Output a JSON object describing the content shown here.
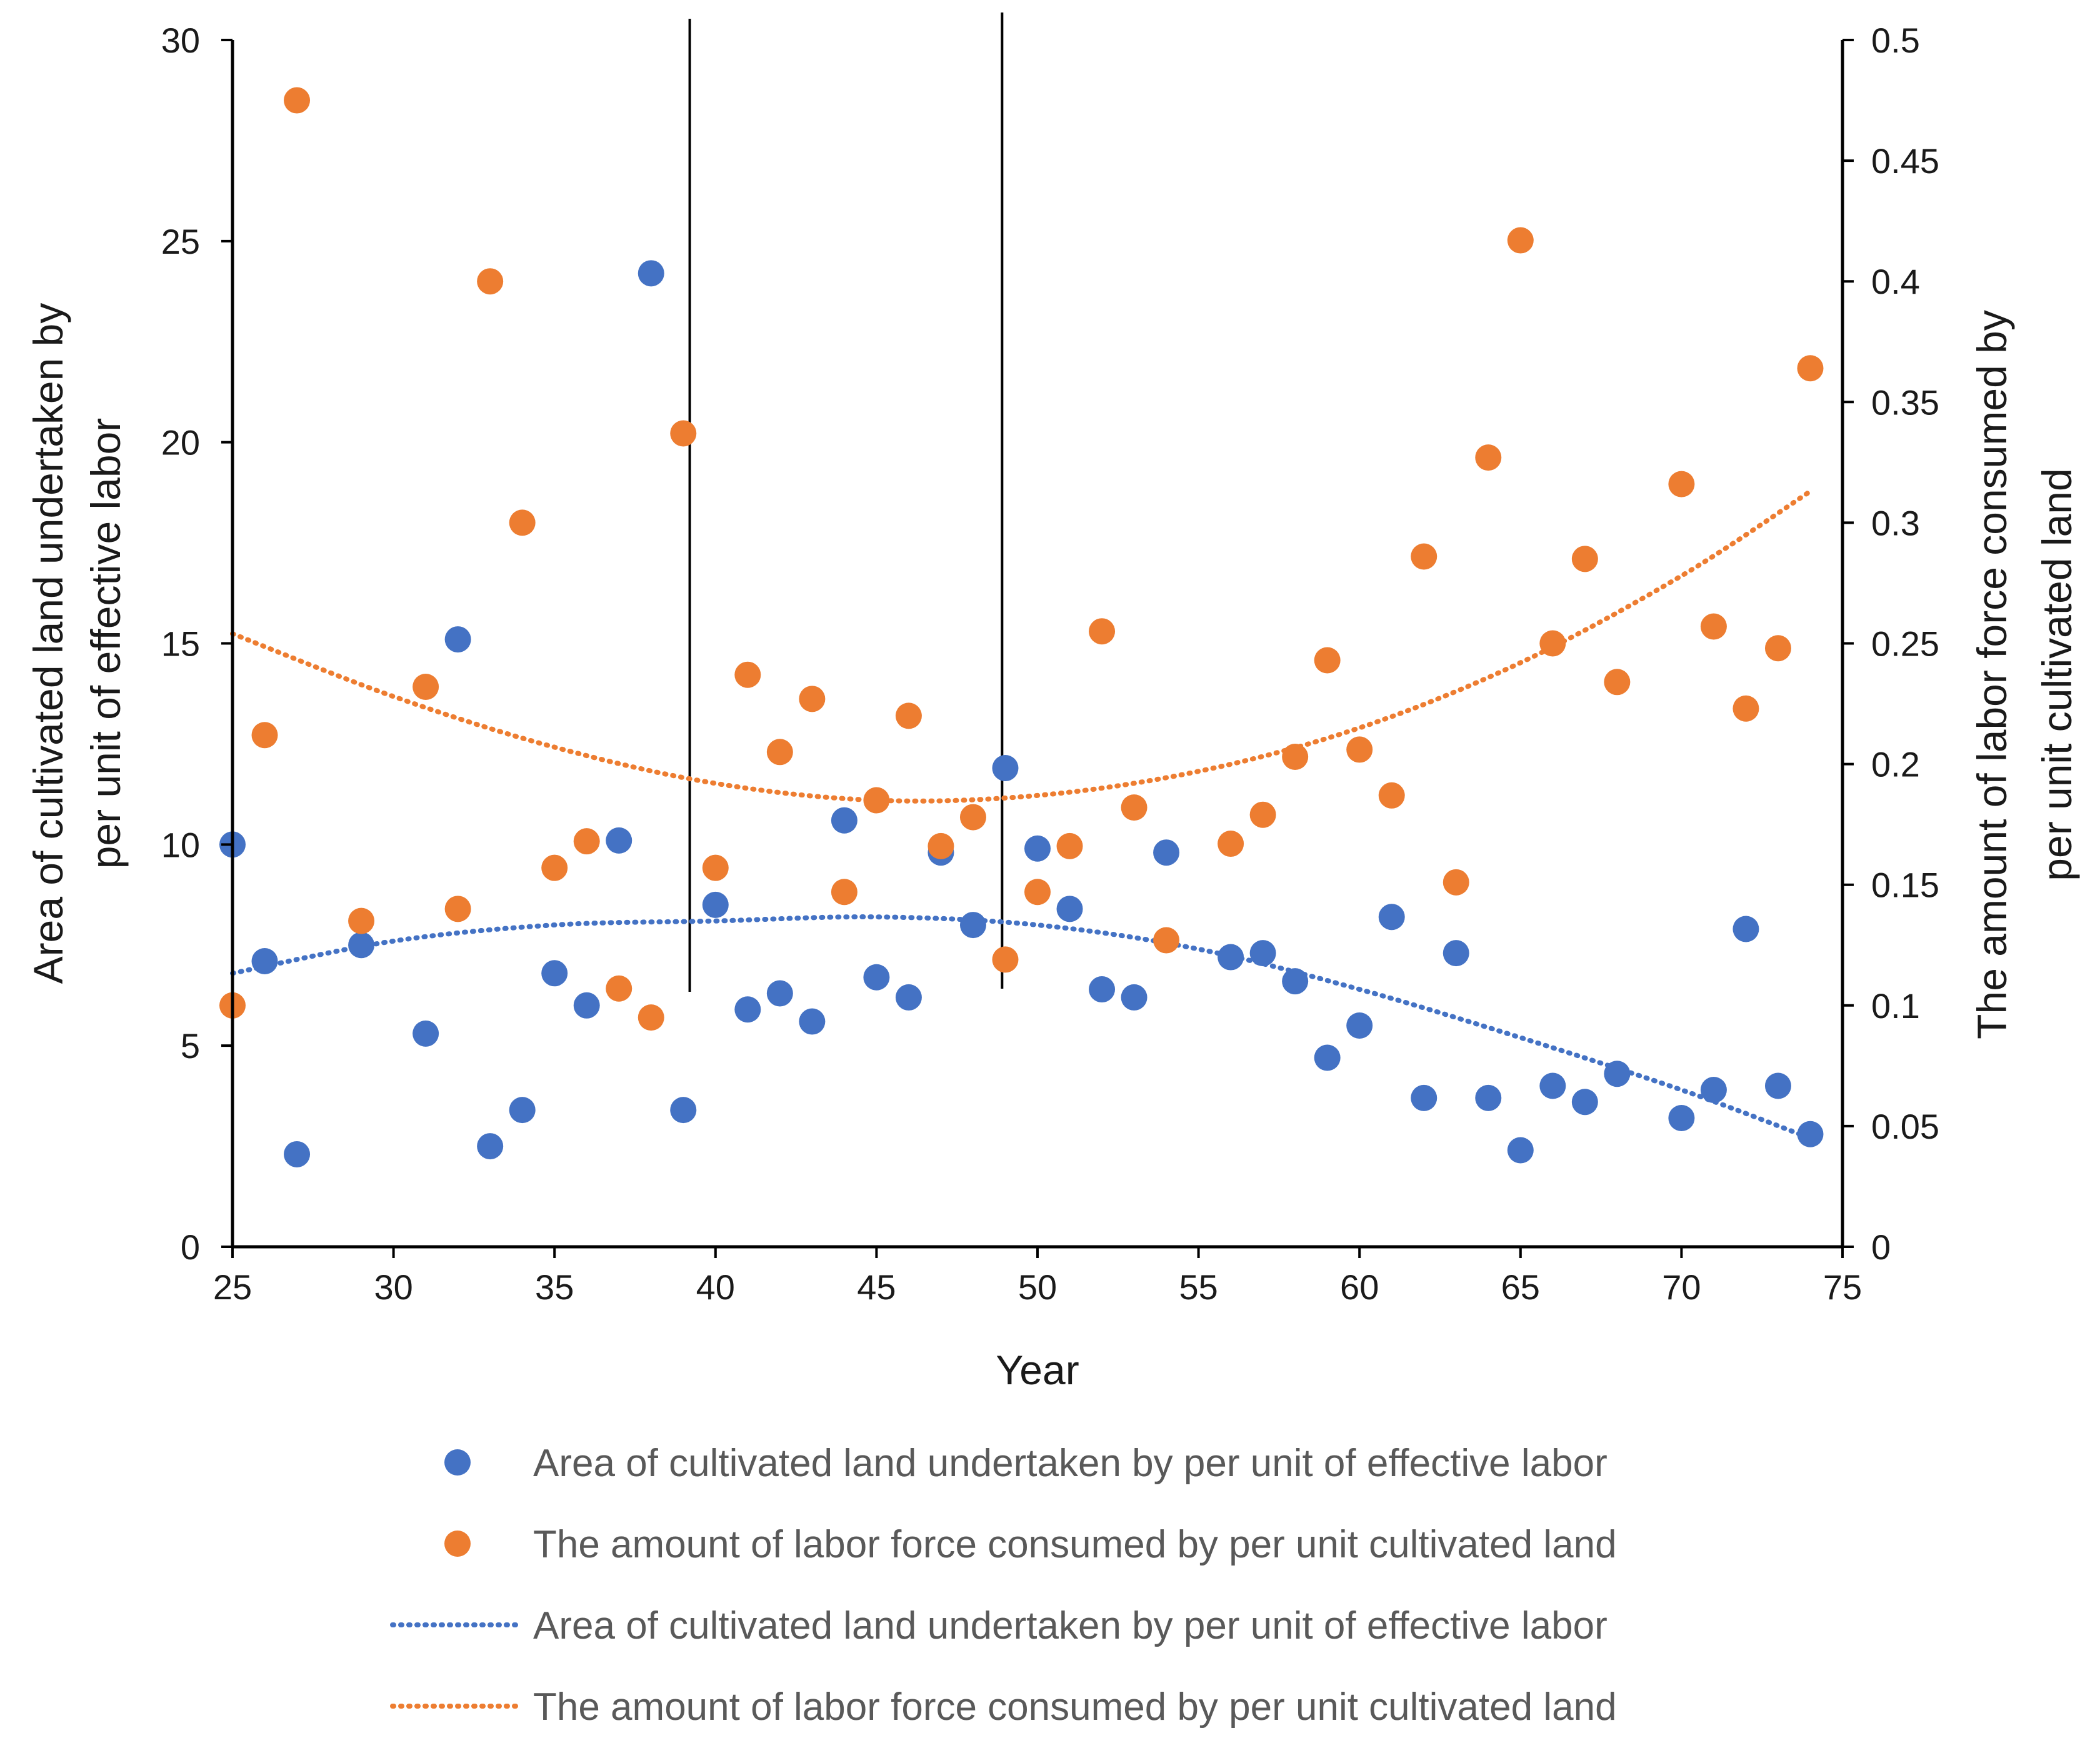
{
  "chart_data": {
    "type": "scatter",
    "xlabel": "Year",
    "ylabel_left": "Area of cultivated land undertaken by per unit of effective labor",
    "ylabel_right": "The amount of labor force consumed by per unit cultivated land",
    "xlim": [
      25,
      75
    ],
    "xticks": [
      "25",
      "30",
      "35",
      "40",
      "45",
      "50",
      "55",
      "60",
      "65",
      "70",
      "75"
    ],
    "ylim_left": [
      0,
      30
    ],
    "yticks_left": [
      "0",
      "5",
      "10",
      "15",
      "20",
      "25",
      "30"
    ],
    "ylim_right": [
      0,
      0.5
    ],
    "yticks_right": [
      "0",
      "0.05",
      "0.1",
      "0.15",
      "0.2",
      "0.25",
      "0.3",
      "0.35",
      "0.4",
      "0.45",
      "0.5"
    ],
    "vertical_lines": [
      39.2,
      48.9
    ],
    "series": [
      {
        "name": "Area of cultivated land undertaken by per unit of effective labor",
        "axis": "left",
        "color": "#4472C4",
        "points": [
          [
            25,
            10.0
          ],
          [
            26,
            7.1
          ],
          [
            27,
            2.3
          ],
          [
            29,
            7.5
          ],
          [
            31,
            5.3
          ],
          [
            32,
            15.1
          ],
          [
            33,
            2.5
          ],
          [
            34,
            3.4
          ],
          [
            35,
            6.8
          ],
          [
            36,
            6.0
          ],
          [
            37,
            10.1
          ],
          [
            38,
            24.2
          ],
          [
            39,
            3.4
          ],
          [
            40,
            8.5
          ],
          [
            41,
            5.9
          ],
          [
            42,
            6.3
          ],
          [
            43,
            5.6
          ],
          [
            44,
            10.6
          ],
          [
            45,
            6.7
          ],
          [
            46,
            6.2
          ],
          [
            47,
            9.8
          ],
          [
            48,
            8.0
          ],
          [
            49,
            11.9
          ],
          [
            50,
            9.9
          ],
          [
            51,
            8.4
          ],
          [
            52,
            6.4
          ],
          [
            53,
            6.2
          ],
          [
            54,
            9.8
          ],
          [
            56,
            7.2
          ],
          [
            57,
            7.3
          ],
          [
            58,
            6.6
          ],
          [
            59,
            4.7
          ],
          [
            60,
            5.5
          ],
          [
            61,
            8.2
          ],
          [
            62,
            3.7
          ],
          [
            63,
            7.3
          ],
          [
            64,
            3.7
          ],
          [
            65,
            2.4
          ],
          [
            66,
            4.0
          ],
          [
            67,
            3.6
          ],
          [
            68,
            4.3
          ],
          [
            70,
            3.2
          ],
          [
            71,
            3.9
          ],
          [
            72,
            7.9
          ],
          [
            73,
            4.0
          ],
          [
            74,
            2.8
          ]
        ]
      },
      {
        "name": "The amount of labor force consumed by per unit cultivated land",
        "axis": "right",
        "color": "#ED7D31",
        "points": [
          [
            25,
            0.1
          ],
          [
            26,
            0.212
          ],
          [
            27,
            0.475
          ],
          [
            29,
            0.135
          ],
          [
            31,
            0.232
          ],
          [
            32,
            0.14
          ],
          [
            33,
            0.4
          ],
          [
            34,
            0.3
          ],
          [
            35,
            0.157
          ],
          [
            36,
            0.168
          ],
          [
            37,
            0.107
          ],
          [
            38,
            0.095
          ],
          [
            39,
            0.337
          ],
          [
            40,
            0.157
          ],
          [
            41,
            0.237
          ],
          [
            42,
            0.205
          ],
          [
            43,
            0.227
          ],
          [
            44,
            0.147
          ],
          [
            45,
            0.185
          ],
          [
            46,
            0.22
          ],
          [
            47,
            0.166
          ],
          [
            48,
            0.178
          ],
          [
            49,
            0.119
          ],
          [
            50,
            0.147
          ],
          [
            51,
            0.166
          ],
          [
            52,
            0.255
          ],
          [
            53,
            0.182
          ],
          [
            54,
            0.127
          ],
          [
            56,
            0.167
          ],
          [
            57,
            0.179
          ],
          [
            58,
            0.203
          ],
          [
            59,
            0.243
          ],
          [
            60,
            0.206
          ],
          [
            61,
            0.187
          ],
          [
            62,
            0.286
          ],
          [
            63,
            0.151
          ],
          [
            64,
            0.327
          ],
          [
            65,
            0.417
          ],
          [
            66,
            0.25
          ],
          [
            67,
            0.285
          ],
          [
            68,
            0.234
          ],
          [
            70,
            0.316
          ],
          [
            71,
            0.257
          ],
          [
            72,
            0.223
          ],
          [
            73,
            0.248
          ],
          [
            74,
            0.364
          ]
        ]
      }
    ],
    "trendlines": [
      {
        "name": "Area of cultivated land undertaken by per unit of effective labor",
        "axis": "left",
        "color": "#4472C4",
        "type": "polynomial-2",
        "x": [
          25,
          30,
          35,
          40,
          45,
          50,
          55,
          60,
          65,
          70,
          74
        ],
        "y": [
          6.8,
          7.6,
          8.0,
          8.1,
          8.2,
          8.0,
          7.4,
          6.4,
          5.2,
          3.9,
          2.7
        ]
      },
      {
        "name": "The amount of labor force consumed by per unit cultivated land",
        "axis": "right",
        "color": "#ED7D31",
        "type": "polynomial-2",
        "x": [
          25,
          30,
          35,
          40,
          45,
          50,
          55,
          60,
          65,
          70,
          74
        ],
        "y": [
          0.254,
          0.228,
          0.207,
          0.192,
          0.185,
          0.187,
          0.197,
          0.215,
          0.242,
          0.278,
          0.313
        ]
      }
    ],
    "legend": [
      {
        "kind": "marker",
        "color": "#4472C4",
        "label": "Area of cultivated land undertaken by per unit of effective labor"
      },
      {
        "kind": "marker",
        "color": "#ED7D31",
        "label": "The amount of labor force consumed by per unit cultivated land"
      },
      {
        "kind": "line",
        "color": "#4472C4",
        "label": "Area of cultivated land undertaken by per unit of effective labor"
      },
      {
        "kind": "line",
        "color": "#ED7D31",
        "label": "The amount of labor force consumed by per unit cultivated land"
      }
    ],
    "legend_position": "bottom"
  }
}
